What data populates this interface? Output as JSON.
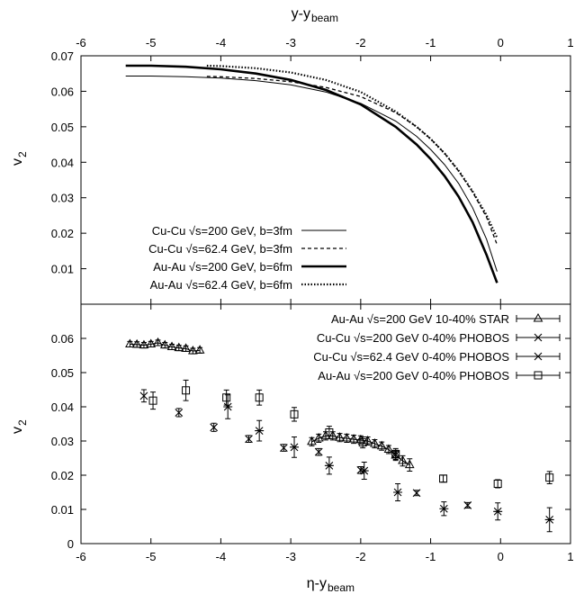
{
  "chart_data": [
    {
      "type": "line",
      "panel": "top",
      "title": "",
      "xlabel": "y-y",
      "xlabel_sub": "beam",
      "ylabel": "v",
      "ylabel_sub": "2",
      "xlim": [
        -6,
        1
      ],
      "ylim": [
        0,
        0.07
      ],
      "x_ticks": [
        -6,
        -5,
        -4,
        -3,
        -2,
        -1,
        0,
        1
      ],
      "y_ticks": [
        0.01,
        0.02,
        0.03,
        0.04,
        0.05,
        0.06,
        0.07
      ],
      "grid": false,
      "legend_placement": "bottom-left",
      "series": [
        {
          "name": "Cu-Cu √s=200 GeV, b=3fm",
          "style": "thin-solid",
          "x": [
            -5.36,
            -5.0,
            -4.5,
            -4.0,
            -3.5,
            -3.0,
            -2.5,
            -2.0,
            -1.5,
            -1.2,
            -1.0,
            -0.8,
            -0.6,
            -0.4,
            -0.2,
            -0.05
          ],
          "y": [
            0.0643,
            0.0643,
            0.0641,
            0.0637,
            0.063,
            0.0618,
            0.0598,
            0.0566,
            0.0516,
            0.0473,
            0.0436,
            0.0393,
            0.034,
            0.0272,
            0.0183,
            0.0092
          ]
        },
        {
          "name": "Cu-Cu √s=62.4 GeV, b=3fm",
          "style": "dashed",
          "x": [
            -4.2,
            -4.0,
            -3.5,
            -3.0,
            -2.5,
            -2.0,
            -1.5,
            -1.2,
            -1.0,
            -0.8,
            -0.6,
            -0.4,
            -0.2,
            -0.05
          ],
          "y": [
            0.0642,
            0.0641,
            0.0636,
            0.0627,
            0.0611,
            0.0585,
            0.054,
            0.05,
            0.0466,
            0.0425,
            0.0375,
            0.0316,
            0.0245,
            0.0168
          ]
        },
        {
          "name": "Au-Au √s=200 GeV, b=6fm",
          "style": "thick-solid",
          "x": [
            -5.36,
            -5.0,
            -4.5,
            -4.0,
            -3.5,
            -3.0,
            -2.5,
            -2.0,
            -1.5,
            -1.2,
            -1.0,
            -0.8,
            -0.6,
            -0.4,
            -0.2,
            -0.05
          ],
          "y": [
            0.0672,
            0.0672,
            0.0669,
            0.0662,
            0.065,
            0.0632,
            0.0604,
            0.0563,
            0.05,
            0.045,
            0.0409,
            0.0361,
            0.0303,
            0.0231,
            0.0139,
            0.006
          ]
        },
        {
          "name": "Au-Au √s=62.4 GeV, b=6fm",
          "style": "dotted",
          "x": [
            -4.2,
            -4.0,
            -3.5,
            -3.0,
            -2.5,
            -2.0,
            -1.5,
            -1.2,
            -1.0,
            -0.8,
            -0.6,
            -0.4,
            -0.2,
            -0.05
          ],
          "y": [
            0.0672,
            0.0671,
            0.0665,
            0.0653,
            0.0632,
            0.0598,
            0.0543,
            0.05,
            0.0466,
            0.0425,
            0.0376,
            0.0318,
            0.0251,
            0.0187
          ]
        }
      ]
    },
    {
      "type": "scatter",
      "panel": "bottom",
      "title": "",
      "xlabel": "η-y",
      "xlabel_sub": "beam",
      "ylabel": "v",
      "ylabel_sub": "2",
      "xlim": [
        -6,
        1
      ],
      "ylim": [
        0,
        0.07
      ],
      "x_ticks": [
        -6,
        -5,
        -4,
        -3,
        -2,
        -1,
        0,
        1
      ],
      "y_ticks": [
        0,
        0.01,
        0.02,
        0.03,
        0.04,
        0.05,
        0.06
      ],
      "grid": false,
      "legend_placement": "top-right",
      "series": [
        {
          "name": "Au-Au √s=200 GeV 10-40% STAR",
          "marker": "triangle",
          "connected": true,
          "x": [
            -5.3,
            -5.2,
            -5.1,
            -5.0,
            -4.9,
            -4.8,
            -4.7,
            -4.6,
            -4.5,
            -4.4,
            -4.3
          ],
          "y": [
            0.0583,
            0.0582,
            0.058,
            0.0583,
            0.0587,
            0.058,
            0.0575,
            0.0572,
            0.057,
            0.0563,
            0.0565
          ],
          "err": [
            0.0008,
            0.0008,
            0.0008,
            0.0008,
            0.0008,
            0.0008,
            0.0008,
            0.0008,
            0.0008,
            0.0008,
            0.0008
          ]
        },
        {
          "name": "Au-Au √s=200 GeV 10-40% STAR",
          "marker": "triangle",
          "connected": true,
          "x": [
            -2.7,
            -2.6,
            -2.5,
            -2.4,
            -2.3,
            -2.2,
            -2.1,
            -2.0,
            -1.9,
            -1.8,
            -1.7,
            -1.6,
            -1.5,
            -1.4,
            -1.3
          ],
          "y": [
            0.0298,
            0.0308,
            0.0315,
            0.0315,
            0.031,
            0.0308,
            0.0305,
            0.0303,
            0.03,
            0.0292,
            0.0285,
            0.0275,
            0.0258,
            0.0242,
            0.023
          ],
          "err": [
            0.0012,
            0.0012,
            0.0012,
            0.0012,
            0.0012,
            0.0012,
            0.0012,
            0.0012,
            0.0012,
            0.0012,
            0.0012,
            0.0012,
            0.0015,
            0.0015,
            0.0018
          ]
        },
        {
          "name": "Cu-Cu √s=200 GeV 0-40% PHOBOS",
          "marker": "cross",
          "connected": false,
          "x": [
            -5.1,
            -4.6,
            -4.1,
            -3.6,
            -3.1,
            -2.6,
            -2.0,
            -1.5,
            -1.2,
            -0.47
          ],
          "y": [
            0.0432,
            0.0383,
            0.034,
            0.0306,
            0.028,
            0.0268,
            0.0215,
            0.026,
            0.0148,
            0.0112
          ],
          "err": [
            0.0018,
            0.0012,
            0.0012,
            0.001,
            0.001,
            0.001,
            0.001,
            0.001,
            0.0008,
            0.0008
          ]
        },
        {
          "name": "Cu-Cu √s=62.4 GeV 0-40% PHOBOS",
          "marker": "star",
          "connected": false,
          "x": [
            -3.9,
            -3.45,
            -2.95,
            -2.45,
            -1.95,
            -1.47,
            -0.81,
            -0.04,
            0.7
          ],
          "y": [
            0.04,
            0.033,
            0.0282,
            0.0228,
            0.0213,
            0.015,
            0.0102,
            0.0094,
            0.007
          ],
          "err": [
            0.0035,
            0.003,
            0.003,
            0.0025,
            0.0025,
            0.0025,
            0.002,
            0.0025,
            0.0035
          ]
        },
        {
          "name": "Au-Au √s=200 GeV 0-40% PHOBOS",
          "marker": "square",
          "connected": false,
          "x": [
            -4.97,
            -4.5,
            -3.92,
            -3.45,
            -2.95,
            -2.45,
            -1.97,
            -1.5,
            -0.82,
            -0.04,
            0.7
          ],
          "y": [
            0.0418,
            0.0448,
            0.0427,
            0.0427,
            0.0378,
            0.0325,
            0.0296,
            0.0262,
            0.019,
            0.0175,
            0.0193
          ],
          "err": [
            0.0025,
            0.003,
            0.0022,
            0.0022,
            0.002,
            0.0018,
            0.0016,
            0.0016,
            0.001,
            0.0012,
            0.0018
          ]
        }
      ]
    }
  ]
}
